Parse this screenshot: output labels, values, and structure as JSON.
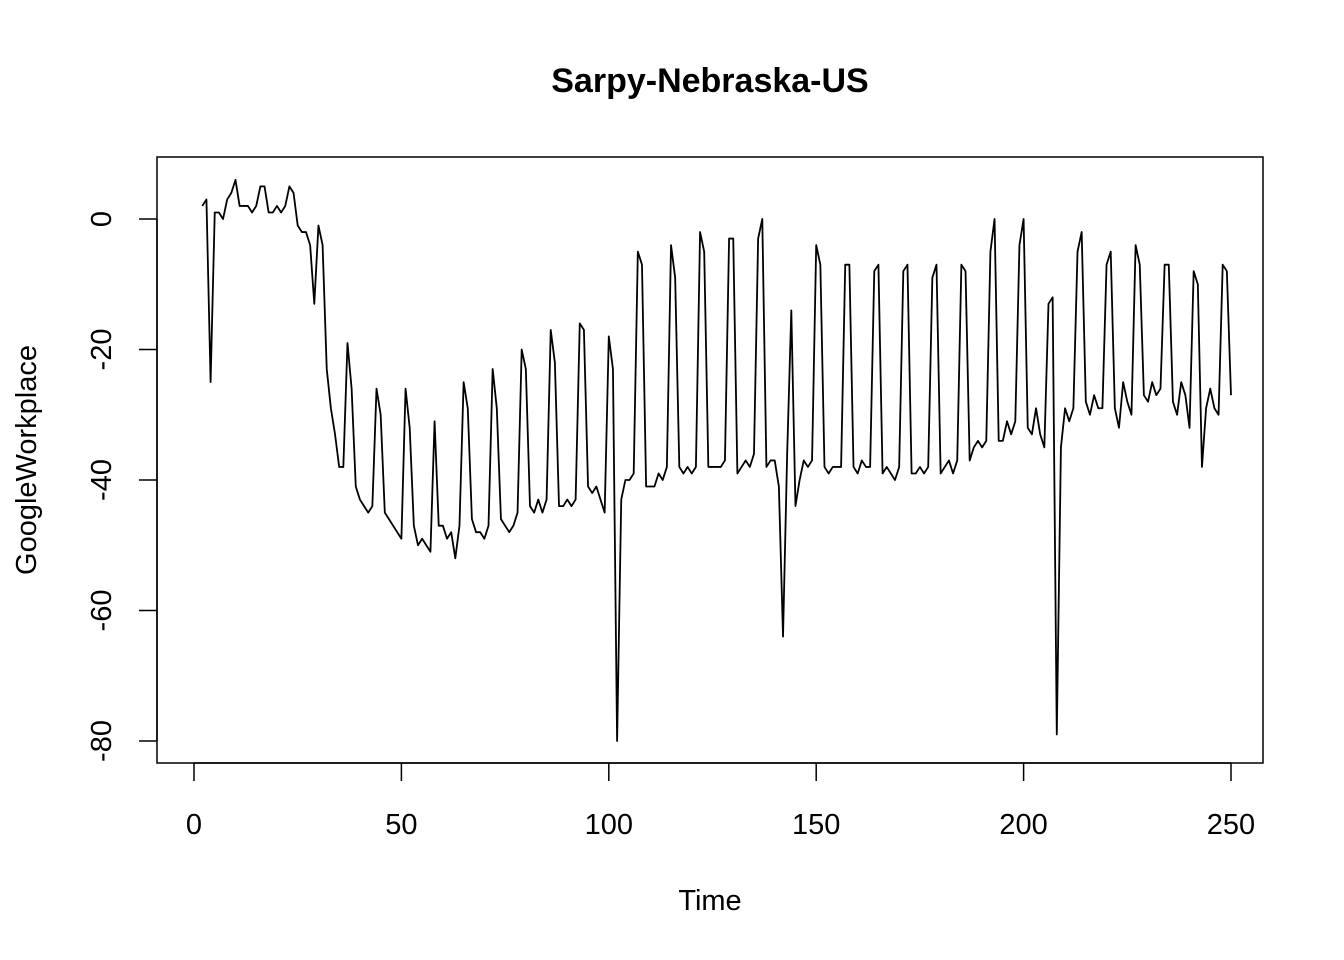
{
  "chart_data": {
    "type": "line",
    "title": "Sarpy-Nebraska-US",
    "xlabel": "Time",
    "ylabel": "GoogleWorkplace",
    "xlim": [
      0,
      250
    ],
    "ylim": [
      -80,
      5
    ],
    "xticks": [
      0,
      50,
      100,
      150,
      200,
      250
    ],
    "yticks": [
      -80,
      -60,
      -40,
      -20,
      0
    ],
    "grid": false,
    "legend": "none",
    "line_color": "#000000",
    "series": [
      {
        "x_start": 2,
        "values": [
          2,
          3,
          -25,
          1,
          1,
          0,
          3,
          4,
          6,
          2,
          2,
          2,
          1,
          2,
          5,
          5,
          1,
          1,
          2,
          1,
          2,
          5,
          4,
          -1,
          -2,
          -2,
          -4,
          -13,
          -1,
          -4,
          -23,
          -29,
          -33,
          -38,
          -38,
          -19,
          -26,
          -41,
          -43,
          -44,
          -45,
          -44,
          -26,
          -30,
          -45,
          -46,
          -47,
          -48,
          -49,
          -26,
          -32,
          -47,
          -50,
          -49,
          -50,
          -51,
          -31,
          -47,
          -47,
          -49,
          -48,
          -52,
          -47,
          -25,
          -29,
          -46,
          -48,
          -48,
          -49,
          -47,
          -23,
          -29,
          -46,
          -47,
          -48,
          -47,
          -45,
          -20,
          -23,
          -44,
          -45,
          -43,
          -45,
          -43,
          -17,
          -22,
          -44,
          -44,
          -43,
          -44,
          -43,
          -16,
          -17,
          -41,
          -42,
          -41,
          -43,
          -45,
          -18,
          -23,
          -80,
          -43,
          -40,
          -40,
          -39,
          -5,
          -7,
          -41,
          -41,
          -41,
          -39,
          -40,
          -38,
          -4,
          -9,
          -38,
          -39,
          -38,
          -39,
          -38,
          -2,
          -5,
          -38,
          -38,
          -38,
          -38,
          -37,
          -3,
          -3,
          -39,
          -38,
          -37,
          -38,
          -36,
          -3,
          0,
          -38,
          -37,
          -37,
          -41,
          -64,
          -36,
          -14,
          -44,
          -40,
          -37,
          -38,
          -37,
          -4,
          -7,
          -38,
          -39,
          -38,
          -38,
          -38,
          -7,
          -7,
          -38,
          -39,
          -37,
          -38,
          -38,
          -8,
          -7,
          -39,
          -38,
          -39,
          -40,
          -38,
          -8,
          -7,
          -39,
          -39,
          -38,
          -39,
          -38,
          -9,
          -7,
          -39,
          -38,
          -37,
          -39,
          -37,
          -7,
          -8,
          -37,
          -35,
          -34,
          -35,
          -34,
          -5,
          0,
          -34,
          -34,
          -31,
          -33,
          -31,
          -4,
          0,
          -32,
          -33,
          -29,
          -33,
          -35,
          -13,
          -12,
          -79,
          -35,
          -29,
          -31,
          -29,
          -5,
          -2,
          -28,
          -30,
          -27,
          -29,
          -29,
          -7,
          -5,
          -29,
          -32,
          -25,
          -28,
          -30,
          -4,
          -7,
          -27,
          -28,
          -25,
          -27,
          -26,
          -7,
          -7,
          -28,
          -30,
          -25,
          -27,
          -32,
          -8,
          -10,
          -38,
          -29,
          -26,
          -29,
          -30,
          -7,
          -8,
          -27
        ]
      }
    ]
  }
}
